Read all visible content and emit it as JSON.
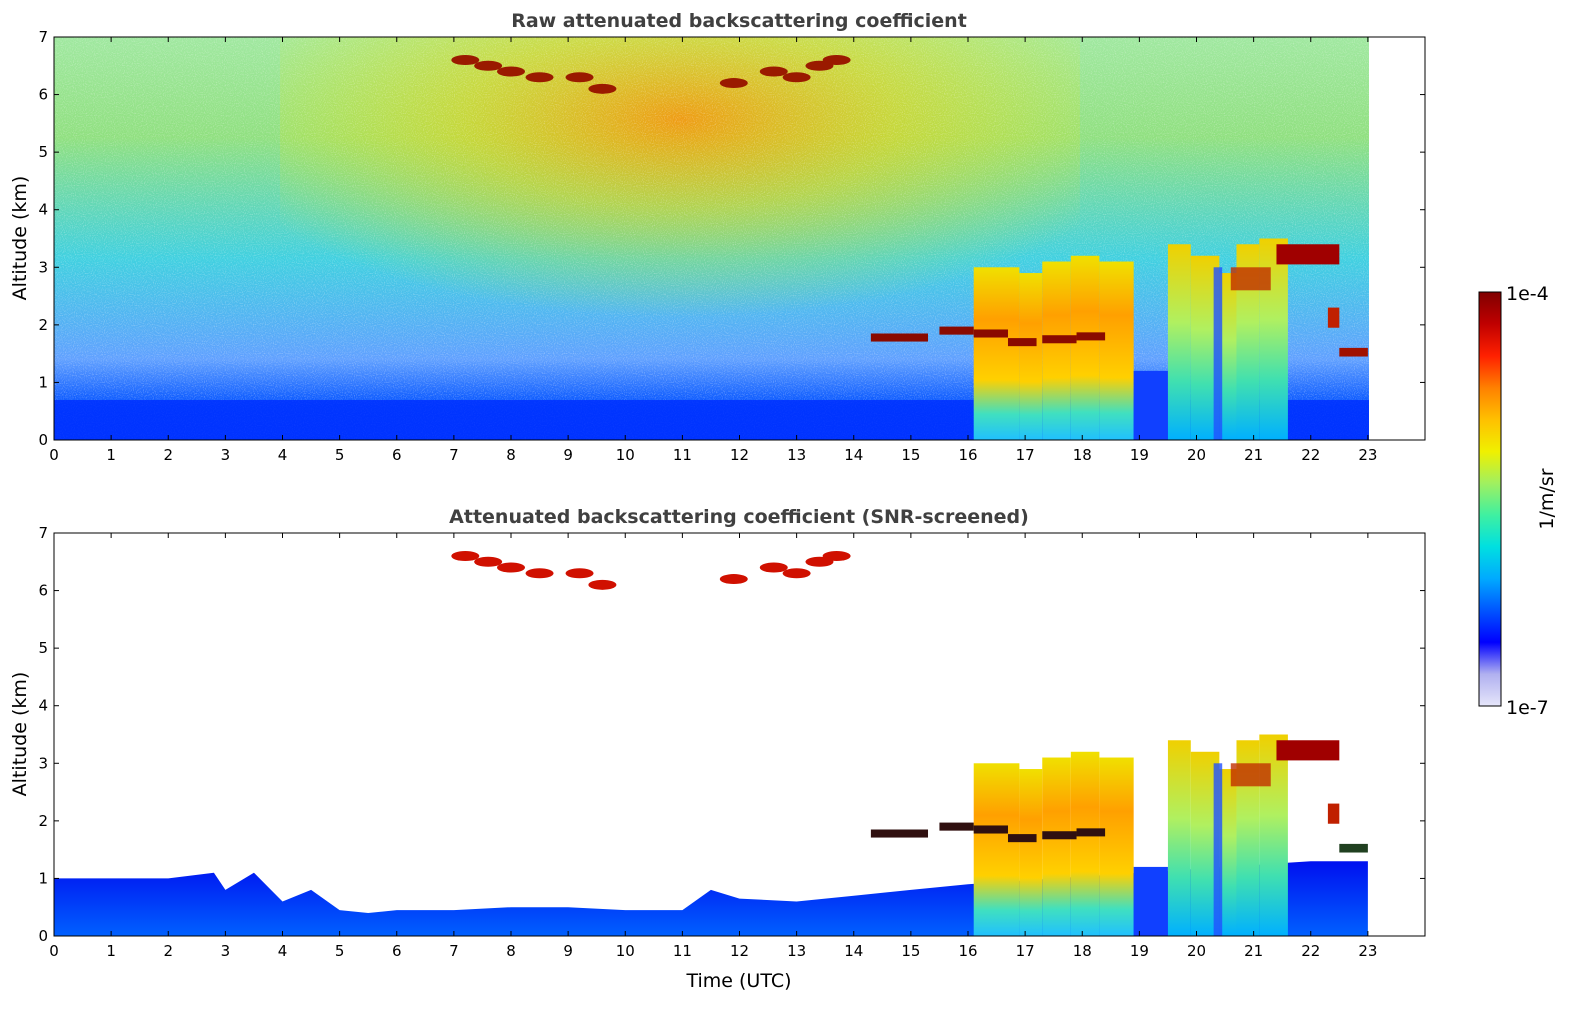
{
  "chart_data": [
    {
      "type": "heatmap",
      "title": "Raw attenuated backscattering coefficient",
      "xlabel": "",
      "ylabel": "Altitude (km)",
      "xlim": [
        0,
        24
      ],
      "ylim": [
        0,
        7
      ],
      "xticks": [
        "0",
        "1",
        "2",
        "3",
        "4",
        "5",
        "6",
        "7",
        "8",
        "9",
        "10",
        "11",
        "12",
        "13",
        "14",
        "15",
        "16",
        "17",
        "18",
        "19",
        "20",
        "21",
        "22",
        "23"
      ],
      "yticks": [
        "0",
        "1",
        "2",
        "3",
        "4",
        "5",
        "6",
        "7"
      ],
      "data_end_hour": 23,
      "description_regions": [
        {
          "name": "boundary-layer",
          "x": [
            0,
            23
          ],
          "y": [
            0,
            0.6
          ],
          "level": "blue"
        },
        {
          "name": "upper-noise",
          "x": [
            5,
            15
          ],
          "y": [
            3,
            7
          ],
          "level": "orange"
        },
        {
          "name": "cirrus",
          "x": [
            7,
            14
          ],
          "y": [
            6.0,
            6.8
          ],
          "level": "darkred"
        },
        {
          "name": "cloud-column-1",
          "x": [
            16.1,
            18.9
          ],
          "y": [
            0,
            3.2
          ],
          "level": "yellow"
        },
        {
          "name": "cloud-column-2",
          "x": [
            19.5,
            21.6
          ],
          "y": [
            0,
            3.5
          ],
          "level": "yellow"
        },
        {
          "name": "cloud-top-layer",
          "x": [
            21.5,
            22.5
          ],
          "y": [
            3.1,
            3.4
          ],
          "level": "darkred"
        }
      ]
    },
    {
      "type": "heatmap",
      "title": "Attenuated backscattering coefficient (SNR-screened)",
      "xlabel": "Time (UTC)",
      "ylabel": "Altitude (km)",
      "xlim": [
        0,
        24
      ],
      "ylim": [
        0,
        7
      ],
      "xticks": [
        "0",
        "1",
        "2",
        "3",
        "4",
        "5",
        "6",
        "7",
        "8",
        "9",
        "10",
        "11",
        "12",
        "13",
        "14",
        "15",
        "16",
        "17",
        "18",
        "19",
        "20",
        "21",
        "22",
        "23"
      ],
      "yticks": [
        "0",
        "1",
        "2",
        "3",
        "4",
        "5",
        "6",
        "7"
      ],
      "data_end_hour": 23,
      "boundary_layer_top_km": [
        [
          0,
          1.0
        ],
        [
          1,
          1.0
        ],
        [
          2,
          1.0
        ],
        [
          2.8,
          1.1
        ],
        [
          3.0,
          0.8
        ],
        [
          3.5,
          1.1
        ],
        [
          4.0,
          0.6
        ],
        [
          4.5,
          0.8
        ],
        [
          5.0,
          0.45
        ],
        [
          5.5,
          0.4
        ],
        [
          6,
          0.45
        ],
        [
          7,
          0.45
        ],
        [
          8,
          0.5
        ],
        [
          9,
          0.5
        ],
        [
          10,
          0.45
        ],
        [
          11,
          0.45
        ],
        [
          11.5,
          0.8
        ],
        [
          12,
          0.65
        ],
        [
          13,
          0.6
        ],
        [
          14,
          0.7
        ],
        [
          15,
          0.8
        ],
        [
          16,
          0.9
        ],
        [
          22,
          1.3
        ],
        [
          23,
          1.3
        ]
      ]
    }
  ],
  "colorbar": {
    "label": "1/m/sr",
    "max_label": "1e-4",
    "min_label": "1e-7",
    "colors": [
      "#e6e6fa",
      "#b0b0f0",
      "#0000ff",
      "#0055ff",
      "#00aaff",
      "#00e0e0",
      "#40f0a0",
      "#a0f060",
      "#f0f000",
      "#ffc000",
      "#ff8000",
      "#ff2000",
      "#c00000",
      "#800000"
    ]
  }
}
